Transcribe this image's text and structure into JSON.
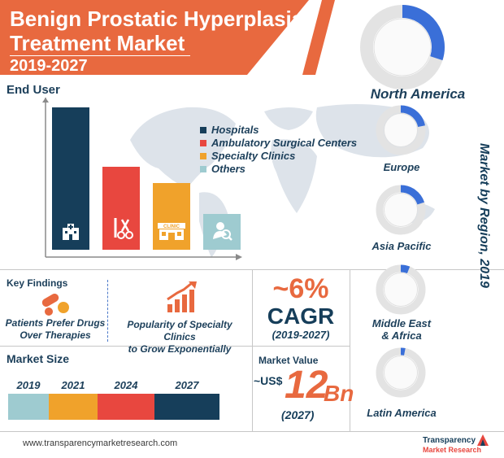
{
  "title": {
    "line1": "Benign Prostatic Hyperplasia",
    "line2": "Treatment Market",
    "years": "2019-2027"
  },
  "end_user": {
    "heading": "End User",
    "legend": [
      {
        "label": "Hospitals",
        "color": "#163e5a"
      },
      {
        "label": "Ambulatory Surgical Centers",
        "color": "#e8473f"
      },
      {
        "label": "Specialty Clinics",
        "color": "#f0a22b"
      },
      {
        "label": "Others",
        "color": "#9ecbd0"
      }
    ],
    "bar_icons": [
      "hospital-icon",
      "surgical-tools-icon",
      "clinic-icon",
      "search-person-icon"
    ],
    "clinic_sign": "CLINIC"
  },
  "chart_data": [
    {
      "type": "bar",
      "categories": [
        "Hospitals",
        "Ambulatory Surgical Centers",
        "Specialty Clinics",
        "Others"
      ],
      "values": [
        100,
        58,
        47,
        25
      ],
      "colors": [
        "#163e5a",
        "#e8473f",
        "#f0a22b",
        "#9ecbd0"
      ],
      "title": "End User",
      "yaxis_ticks": false
    },
    {
      "type": "pie",
      "title": "Market by Region, 2019",
      "categories": [
        "North America",
        "Europe",
        "Asia Pacific",
        "Middle East & Africa",
        "Latin America"
      ],
      "values": [
        0.3,
        0.22,
        0.2,
        0.06,
        0.03
      ],
      "note": "fraction of each donut ring highlighted"
    }
  ],
  "key_findings": {
    "heading": "Key Findings",
    "items": [
      {
        "text_line1": "Patients Prefer Drugs",
        "text_line2": "Over Therapies",
        "icon": "pills-icon"
      },
      {
        "text_line1": "Popularity of Specialty Clinics",
        "text_line2": "to Grow Exponentially",
        "icon": "growth-chart-icon"
      }
    ]
  },
  "cagr": {
    "value": "~6%",
    "label": "CAGR",
    "period": "(2019-2027)"
  },
  "market_size": {
    "heading": "Market Size",
    "years": [
      "2019",
      "2021",
      "2024",
      "2027"
    ],
    "colors": [
      "#9ecbd0",
      "#f0a22b",
      "#e8473f",
      "#163e5a"
    ]
  },
  "market_value": {
    "heading": "Market Value",
    "prefix": "~US$",
    "amount": "12",
    "unit": "Bn",
    "year": "(2027)"
  },
  "regions": {
    "side_title": "Market by Region, 2019",
    "items": [
      "North America",
      "Europe",
      "Asia Pacific",
      "Middle East & Africa",
      "Latin America"
    ],
    "ring_color": "#3a6fd8",
    "ring_base": "#e3e3e3"
  },
  "footer": {
    "url": "www.transparencymarketresearch.com",
    "logo_line1": "Transparency",
    "logo_line2": "Market Research"
  }
}
